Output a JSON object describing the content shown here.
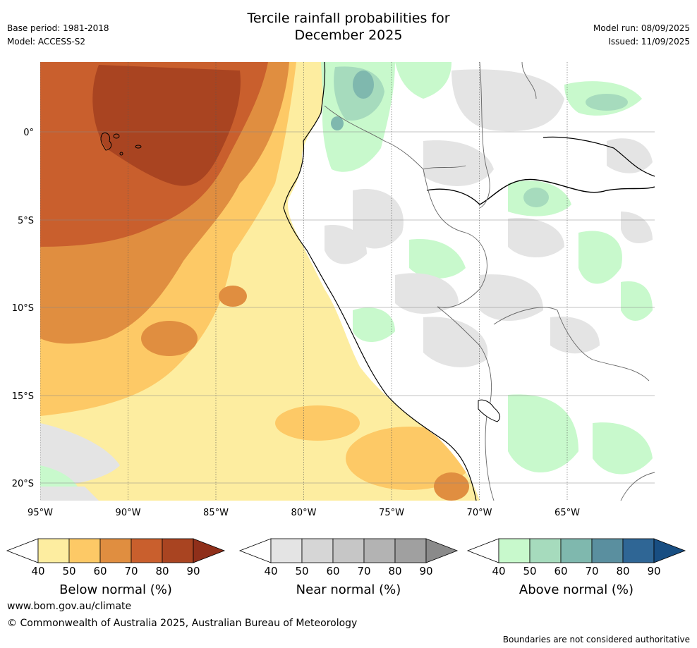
{
  "title": {
    "line1": "Tercile rainfall probabilities for",
    "line2": "December 2025"
  },
  "meta_left": {
    "base_period": "Base period: 1981-2018",
    "model": "Model: ACCESS-S2"
  },
  "meta_right": {
    "model_run": "Model run: 08/09/2025",
    "issued": "Issued: 11/09/2025"
  },
  "map": {
    "lon_ticks": [
      "95°W",
      "90°W",
      "85°W",
      "80°W",
      "75°W",
      "70°W",
      "65°W"
    ],
    "lat_ticks": [
      "0°",
      "5°S",
      "10°S",
      "15°S",
      "20°S"
    ],
    "lon_range": [
      -95,
      -60
    ],
    "lat_range": [
      -21,
      4
    ],
    "region": "Eastern Pacific / Peru / Ecuador / Bolivia"
  },
  "colorbars": [
    {
      "name": "below",
      "label": "Below normal (%)",
      "ticks": [
        "40",
        "50",
        "60",
        "70",
        "80",
        "90"
      ],
      "colors": [
        "#ffffff",
        "#fdeda0",
        "#fdc966",
        "#e08e40",
        "#c95f2d",
        "#a94421",
        "#8f2f1a"
      ]
    },
    {
      "name": "near",
      "label": "Near normal (%)",
      "ticks": [
        "40",
        "50",
        "60",
        "70",
        "80",
        "90"
      ],
      "colors": [
        "#ffffff",
        "#e4e4e4",
        "#d6d6d6",
        "#c6c6c6",
        "#b3b3b3",
        "#a0a0a0",
        "#8a8a8a"
      ]
    },
    {
      "name": "above",
      "label": "Above normal (%)",
      "ticks": [
        "40",
        "50",
        "60",
        "70",
        "80",
        "90"
      ],
      "colors": [
        "#ffffff",
        "#c8f9cc",
        "#a6dbbd",
        "#7fb8ae",
        "#5a8f9f",
        "#2f6695",
        "#184e82"
      ]
    }
  ],
  "footer": {
    "url": "www.bom.gov.au/climate",
    "copyright": "© Commonwealth of Australia 2025, Australian Bureau of Meteorology",
    "disclaimer": "Boundaries are not considered authoritative"
  }
}
